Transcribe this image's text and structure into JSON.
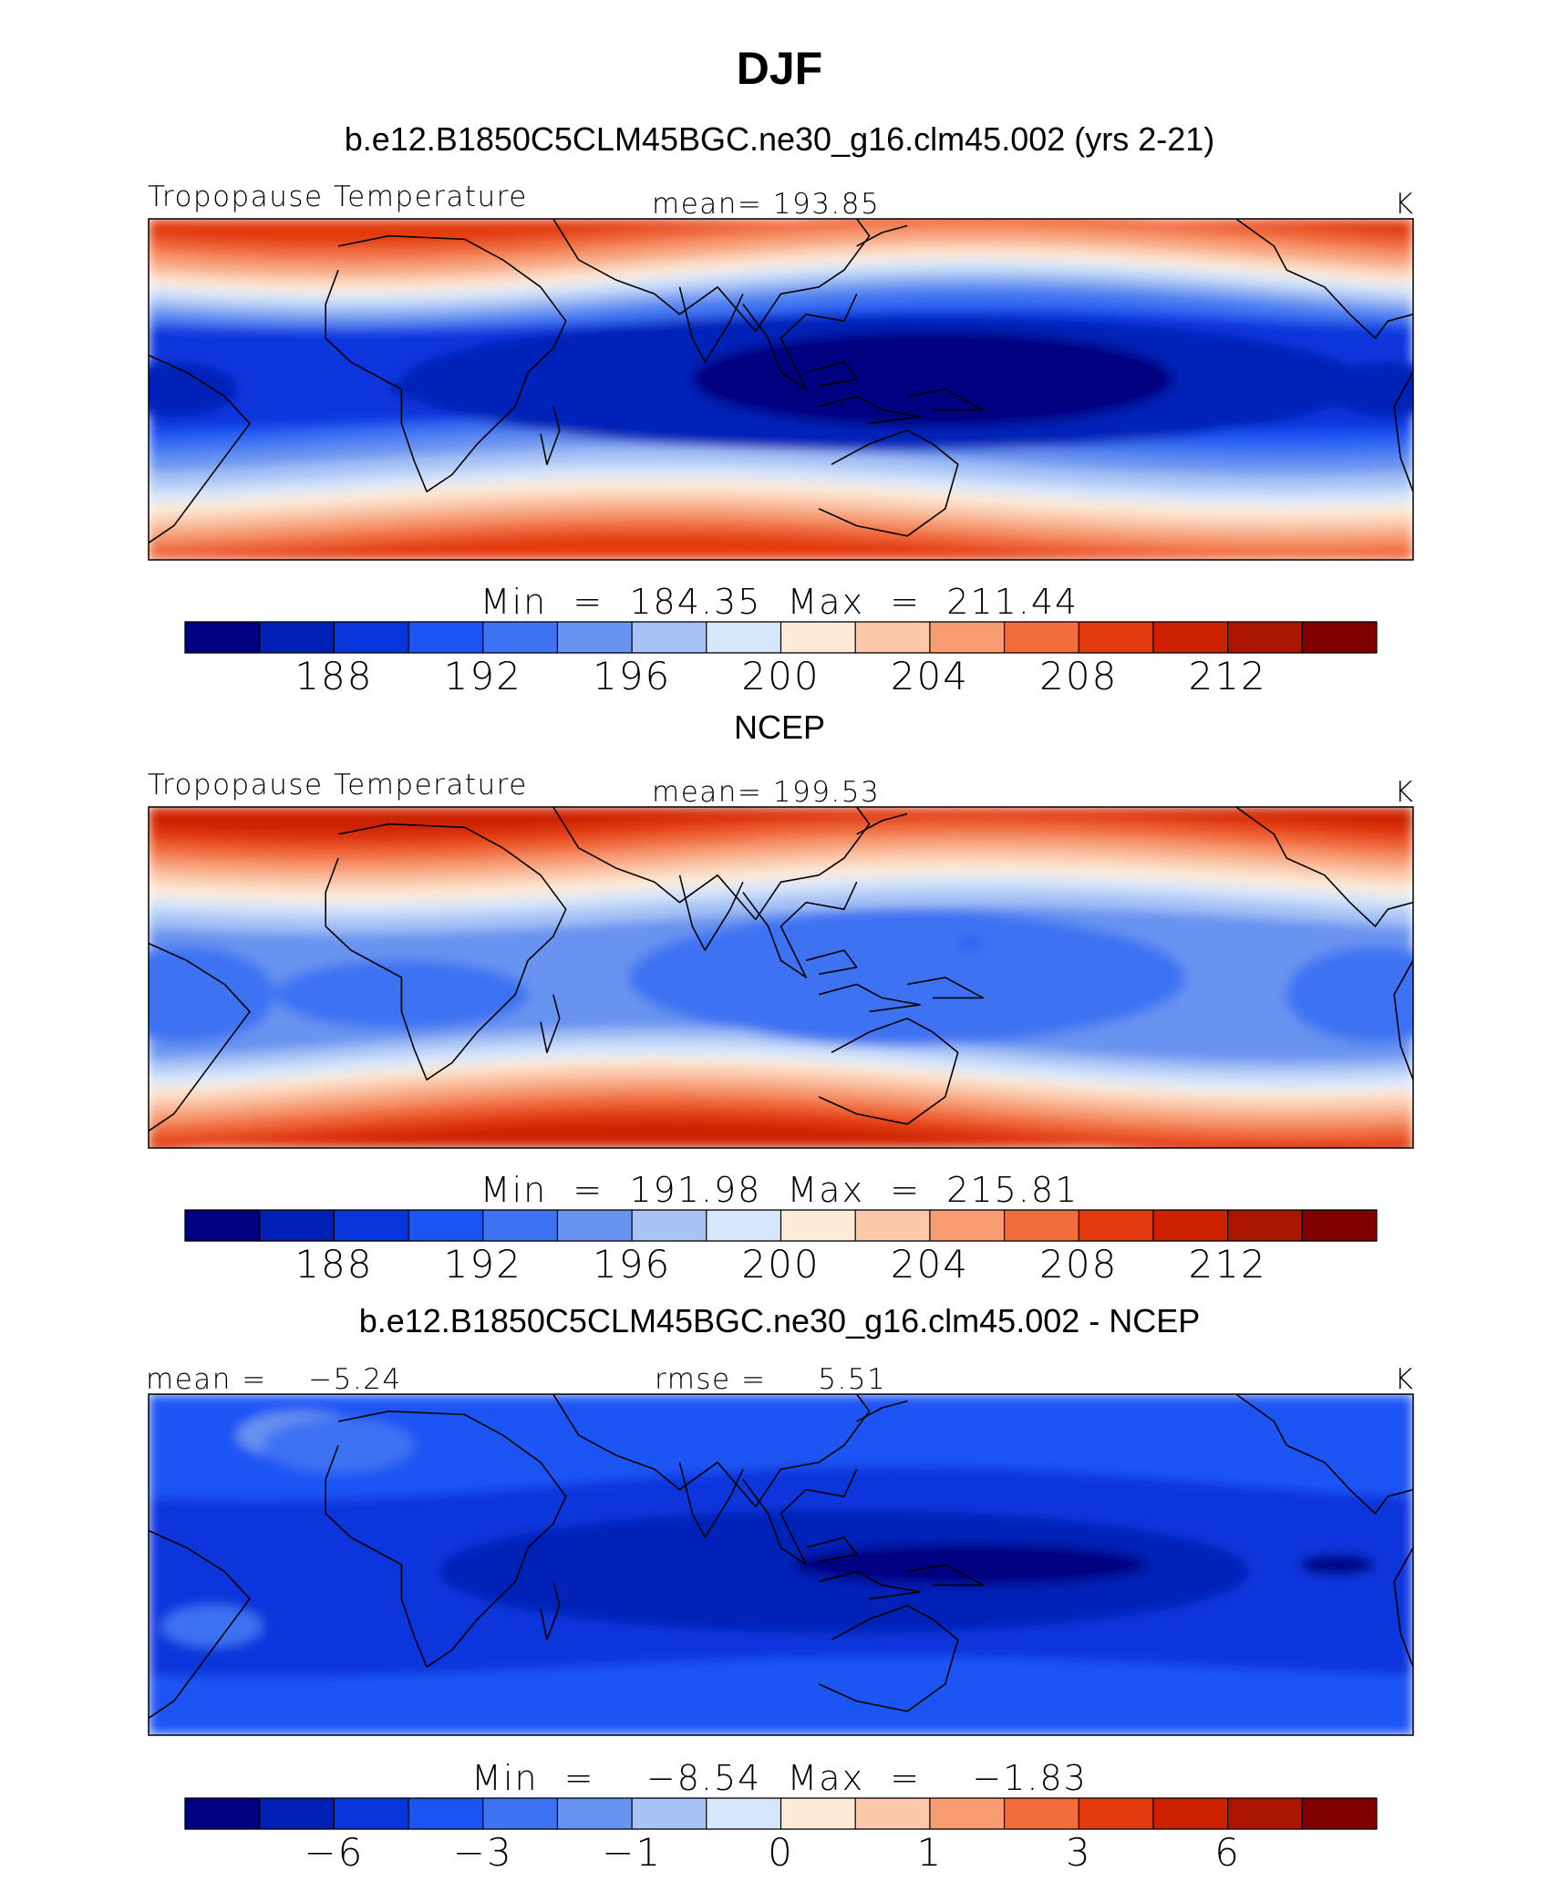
{
  "figure": {
    "title": "DJF",
    "label_colors": [
      "#000080",
      "#0020b8",
      "#0836dc",
      "#1a55f4",
      "#3d72f2",
      "#6893f0",
      "#a8c3f5",
      "#d6e6fb",
      "#fdebd8",
      "#fcc8aa",
      "#f89c72",
      "#f16b3b",
      "#e33b10",
      "#cc2200",
      "#aa1500",
      "#800000"
    ]
  },
  "chart_data": [
    {
      "type": "heatmap",
      "subtitle": "b.e12.B1850C5CLM45BGC.ne30_g16.clm45.002 (yrs 2-21)",
      "variable": "Tropopause Temperature",
      "stat_text": "mean= 193.85",
      "units": "K",
      "range_text": "Min  =  184.35  Max  =  211.44",
      "min": 184.35,
      "max": 211.44,
      "mean": 193.85,
      "levels": [
        186,
        188,
        190,
        192,
        194,
        196,
        198,
        200,
        202,
        204,
        206,
        208,
        210,
        212,
        214
      ],
      "colorbar_labels": [
        "188",
        "192",
        "196",
        "200",
        "204",
        "208",
        "212"
      ],
      "label_level_index": [
        1,
        3,
        5,
        7,
        9,
        11,
        13
      ],
      "map": "global-lon-lat"
    },
    {
      "type": "heatmap",
      "subtitle": "NCEP",
      "variable": "Tropopause Temperature",
      "stat_text": "mean= 199.53",
      "units": "K",
      "range_text": "Min  =  191.98  Max  =  215.81",
      "min": 191.98,
      "max": 215.81,
      "mean": 199.53,
      "levels": [
        186,
        188,
        190,
        192,
        194,
        196,
        198,
        200,
        202,
        204,
        206,
        208,
        210,
        212,
        214
      ],
      "colorbar_labels": [
        "188",
        "192",
        "196",
        "200",
        "204",
        "208",
        "212"
      ],
      "label_level_index": [
        1,
        3,
        5,
        7,
        9,
        11,
        13
      ],
      "map": "global-lon-lat"
    },
    {
      "type": "heatmap",
      "subtitle": "b.e12.B1850C5CLM45BGC.ne30_g16.clm45.002 - NCEP",
      "stat_left": "mean =    −5.24",
      "stat_mid": "rmse =     5.51",
      "units": "K",
      "range_text": "Min  =    −8.54  Max  =    −1.83",
      "min": -8.54,
      "max": -1.83,
      "mean": -5.24,
      "rmse": 5.51,
      "levels": [
        -8,
        -6,
        -4,
        -3,
        -2,
        -1,
        -0.5,
        0,
        0.5,
        1,
        2,
        3,
        4,
        6,
        8
      ],
      "colorbar_labels": [
        "−6",
        "−3",
        "−1",
        "0",
        "1",
        "3",
        "6"
      ],
      "label_level_index": [
        1,
        3,
        5,
        7,
        9,
        11,
        13
      ],
      "map": "global-lon-lat"
    }
  ]
}
